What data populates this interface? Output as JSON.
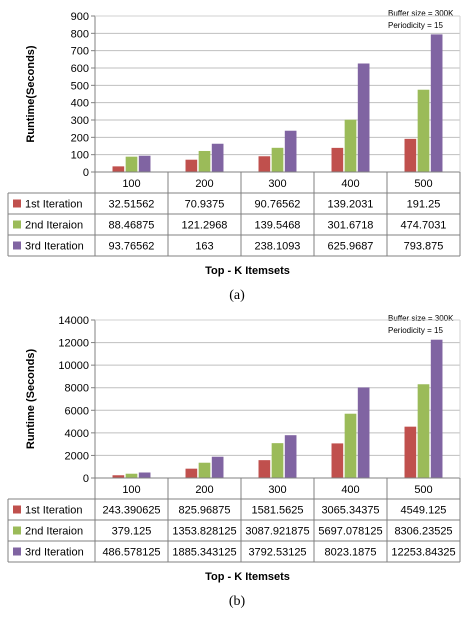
{
  "chart_data": [
    {
      "type": "bar",
      "caption": "(a)",
      "annotation": [
        "Buffer size = 300K",
        "Periodicity = 15"
      ],
      "ylabel": "Runtime(Seconds)",
      "xlabel": "Top - K Itemsets",
      "ylim": [
        0,
        900
      ],
      "yticks": [
        0,
        100,
        200,
        300,
        400,
        500,
        600,
        700,
        800,
        900
      ],
      "grid": true,
      "legend": "table",
      "categories": [
        "100",
        "200",
        "300",
        "400",
        "500"
      ],
      "series": [
        {
          "name": "1st Iteration",
          "color": "#c0504d",
          "values": [
            32.51562,
            70.9375,
            90.76562,
            139.2031,
            191.25
          ],
          "labels": [
            "32.51562",
            "70.9375",
            "90.76562",
            "139.2031",
            "191.25"
          ]
        },
        {
          "name": "2nd Iteraion",
          "color": "#9bbb59",
          "values": [
            88.46875,
            121.2968,
            139.5468,
            301.6718,
            474.7031
          ],
          "labels": [
            "88.46875",
            "121.2968",
            "139.5468",
            "301.6718",
            "474.7031"
          ]
        },
        {
          "name": "3rd Iteration",
          "color": "#8064a2",
          "values": [
            93.76562,
            163,
            238.1093,
            625.9687,
            793.875
          ],
          "labels": [
            "93.76562",
            "163",
            "238.1093",
            "625.9687",
            "793.875"
          ]
        }
      ]
    },
    {
      "type": "bar",
      "caption": "(b)",
      "annotation": [
        "Buffer size = 300K",
        "Periodicity = 15"
      ],
      "ylabel": "Runtime (Seconds)",
      "xlabel": "Top - K Itemsets",
      "ylim": [
        0,
        14000
      ],
      "yticks": [
        0,
        2000,
        4000,
        6000,
        8000,
        10000,
        12000,
        14000
      ],
      "grid": true,
      "legend": "table",
      "categories": [
        "100",
        "200",
        "300",
        "400",
        "500"
      ],
      "series": [
        {
          "name": "1st Iteration",
          "color": "#c0504d",
          "values": [
            243.390625,
            825.96875,
            1581.5625,
            3065.34375,
            4549.125
          ],
          "labels": [
            "243.390625",
            "825.96875",
            "1581.5625",
            "3065.34375",
            "4549.125"
          ]
        },
        {
          "name": "2nd Iteraion",
          "color": "#9bbb59",
          "values": [
            379.125,
            1353.828125,
            3087.921875,
            5697.078125,
            8306.23525
          ],
          "labels": [
            "379.125",
            "1353.828125",
            "3087.921875",
            "5697.078125",
            "8306.23525"
          ]
        },
        {
          "name": "3rd Iteration",
          "color": "#8064a2",
          "values": [
            486.578125,
            1885.343125,
            3792.53125,
            8023.1875,
            12253.84325
          ],
          "labels": [
            "486.578125",
            "1885.343125",
            "3792.53125",
            "8023.1875",
            "12253.84325"
          ]
        }
      ]
    }
  ]
}
